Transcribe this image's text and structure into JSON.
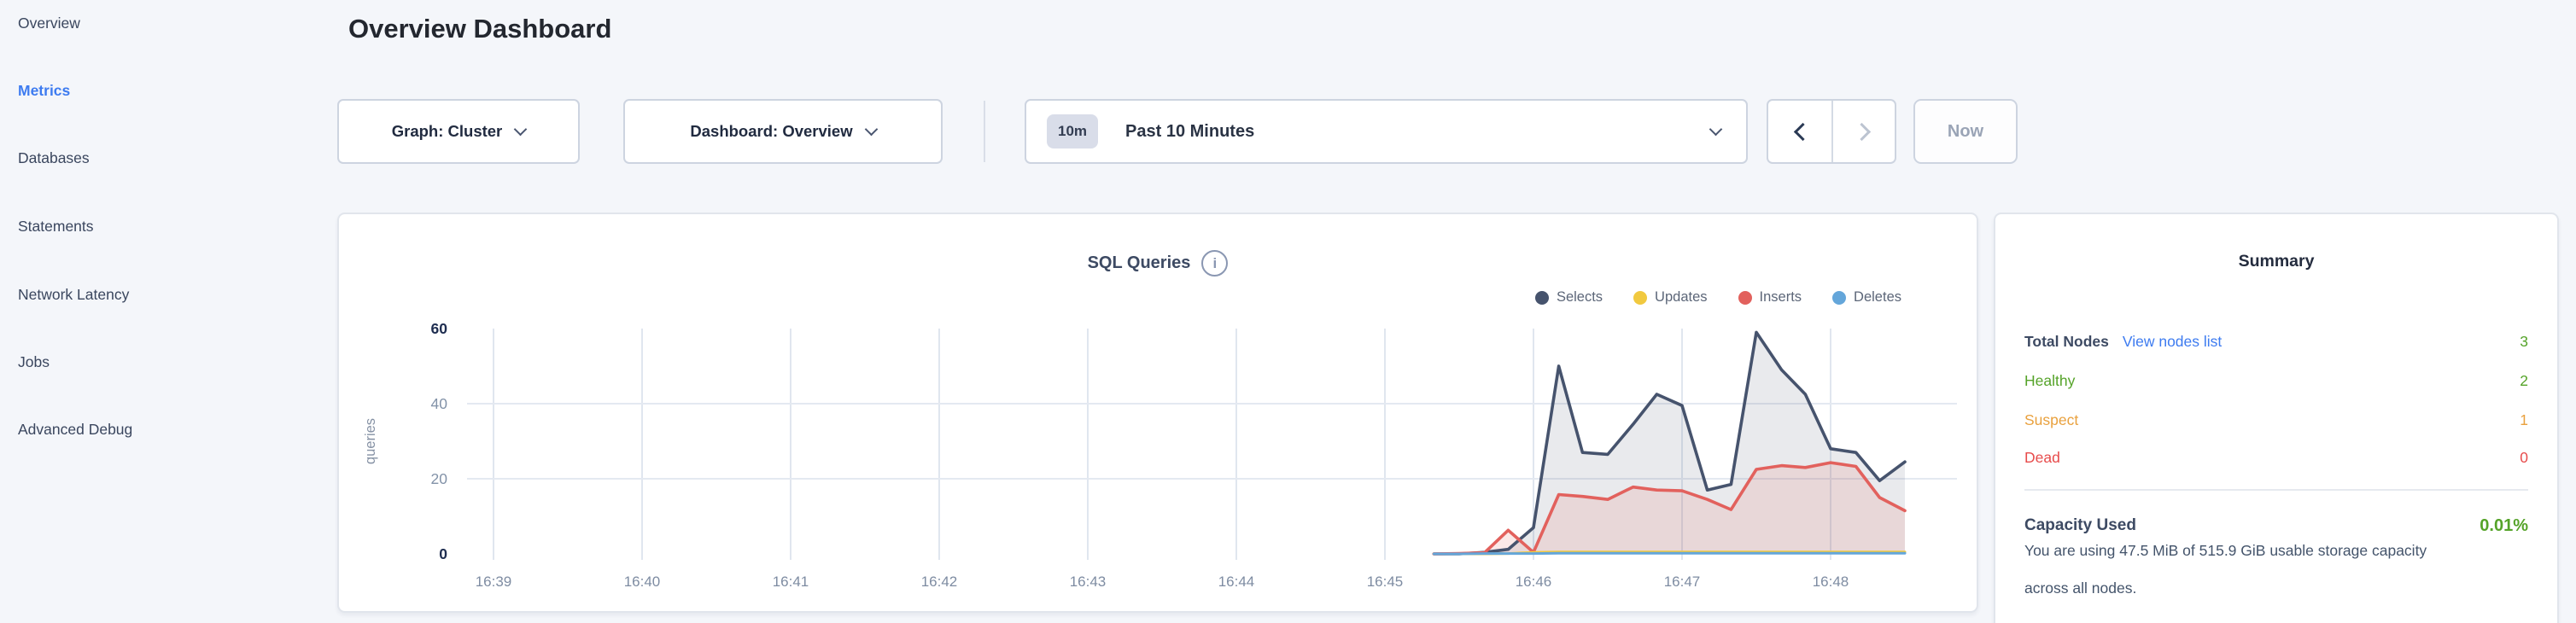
{
  "sidebar": {
    "items": [
      {
        "label": "Overview",
        "active": false
      },
      {
        "label": "Metrics",
        "active": true
      },
      {
        "label": "Databases",
        "active": false
      },
      {
        "label": "Statements",
        "active": false
      },
      {
        "label": "Network Latency",
        "active": false
      },
      {
        "label": "Jobs",
        "active": false
      },
      {
        "label": "Advanced Debug",
        "active": false
      }
    ],
    "active_color": "#3D7BF0"
  },
  "header": {
    "title": "Overview Dashboard"
  },
  "controls": {
    "graph_dropdown": {
      "label": "Graph: Cluster"
    },
    "dashboard_dropdown": {
      "label": "Dashboard: Overview"
    },
    "time_range": {
      "badge": "10m",
      "label": "Past 10 Minutes"
    },
    "now_button": {
      "label": "Now"
    }
  },
  "chart_data": {
    "type": "area",
    "title": "SQL Queries",
    "ylabel": "queries",
    "ylim": [
      0,
      60
    ],
    "y_ticks": [
      0,
      20,
      40,
      60
    ],
    "x_ticks": [
      "16:39",
      "16:40",
      "16:41",
      "16:42",
      "16:43",
      "16:44",
      "16:45",
      "16:46",
      "16:47",
      "16:48"
    ],
    "x_axis_note": "time of day, data sampled every 10s; no data before 16:45:20",
    "x_minutes_after_1600": [
      45.33,
      45.5,
      45.67,
      45.83,
      46.0,
      46.17,
      46.33,
      46.5,
      46.67,
      46.83,
      47.0,
      47.17,
      47.33,
      47.5,
      47.67,
      47.83,
      48.0,
      48.17,
      48.33,
      48.5
    ],
    "legend_position": "top-right",
    "grid": "vertical per minute, horizontal at 20 and 40",
    "series": [
      {
        "name": "Selects",
        "color": "#46536D",
        "fill": "rgba(70,83,109,0.12)",
        "values": [
          0,
          0,
          0.4,
          1.2,
          7,
          50,
          27,
          26.5,
          34.5,
          42.5,
          39.5,
          17,
          18.5,
          59,
          49,
          42.5,
          28,
          27,
          19.5,
          24.5
        ]
      },
      {
        "name": "Updates",
        "color": "#F1C93F",
        "fill": null,
        "values": [
          0,
          0,
          0,
          0.1,
          0.4,
          0.5,
          0.5,
          0.5,
          0.5,
          0.5,
          0.5,
          0.5,
          0.5,
          0.5,
          0.5,
          0.5,
          0.5,
          0.5,
          0.5,
          0.5
        ]
      },
      {
        "name": "Inserts",
        "color": "#E2615D",
        "fill": "rgba(226,97,93,0.14)",
        "values": [
          0,
          0.1,
          0.3,
          6.3,
          0.4,
          15.8,
          15.3,
          14.5,
          17.8,
          17,
          16.8,
          14.5,
          11.8,
          22.5,
          23.5,
          23,
          24.3,
          23.3,
          15,
          11.5
        ]
      },
      {
        "name": "Deletes",
        "color": "#64A6DA",
        "fill": null,
        "values": [
          0,
          0,
          0.1,
          0.1,
          0.1,
          0.15,
          0.15,
          0.15,
          0.15,
          0.15,
          0.15,
          0.15,
          0.15,
          0.15,
          0.15,
          0.15,
          0.15,
          0.15,
          0.15,
          0.15
        ]
      }
    ]
  },
  "summary": {
    "title": "Summary",
    "total_nodes_label": "Total Nodes",
    "view_nodes_link": "View nodes list",
    "total_nodes_value": "3",
    "total_nodes_color": "#55A329",
    "rows": [
      {
        "label": "Healthy",
        "value": "2",
        "color": "#55A329"
      },
      {
        "label": "Suspect",
        "value": "1",
        "color": "#E9A13E"
      },
      {
        "label": "Dead",
        "value": "0",
        "color": "#E74C4C"
      }
    ],
    "capacity_label": "Capacity Used",
    "capacity_value": "0.01%",
    "capacity_color": "#55A329",
    "capacity_description": "You are using 47.5 MiB of 515.9 GiB usable storage capacity across all nodes."
  }
}
